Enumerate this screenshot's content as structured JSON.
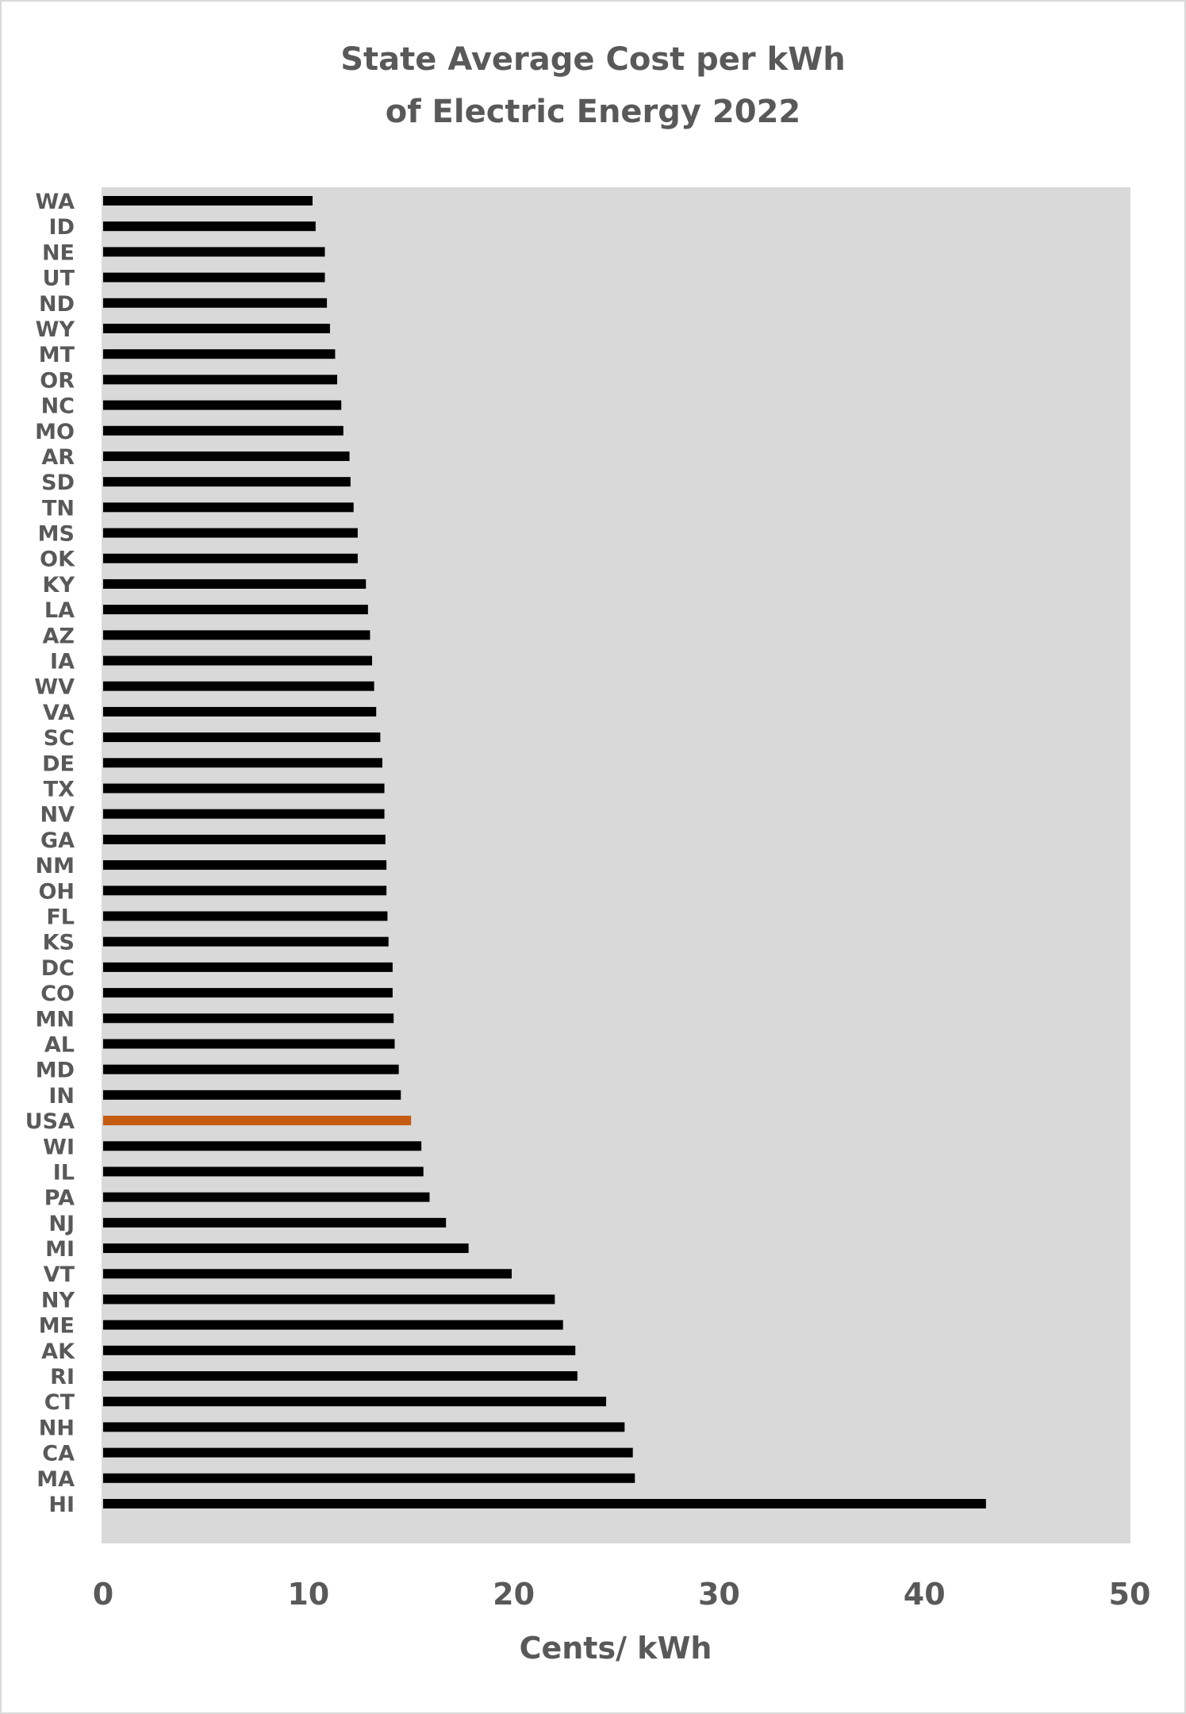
{
  "chart_data": {
    "type": "bar",
    "orientation": "horizontal",
    "title_lines": [
      "State Average Cost per kWh",
      "of Electric Energy 2022"
    ],
    "xlabel": "Cents/ kWh",
    "ylabel": "",
    "xlim": [
      0,
      50
    ],
    "xticks": [
      0,
      10,
      20,
      30,
      40,
      50
    ],
    "grid": false,
    "legend": "none",
    "plot_background": "#d9d9d9",
    "bar_color": "#000000",
    "highlight_color": "#c55a11",
    "highlight_category": "USA",
    "categories": [
      "WA",
      "ID",
      "NE",
      "UT",
      "ND",
      "WY",
      "MT",
      "OR",
      "NC",
      "MO",
      "AR",
      "SD",
      "TN",
      "MS",
      "OK",
      "KY",
      "LA",
      "AZ",
      "IA",
      "WV",
      "VA",
      "SC",
      "DE",
      "TX",
      "NV",
      "GA",
      "NM",
      "OH",
      "FL",
      "KS",
      "DC",
      "CO",
      "MN",
      "AL",
      "MD",
      "IN",
      "USA",
      "WI",
      "IL",
      "PA",
      "NJ",
      "MI",
      "VT",
      "NY",
      "ME",
      "AK",
      "RI",
      "CT",
      "NH",
      "CA",
      "MA",
      "HI"
    ],
    "values": [
      10.2,
      10.35,
      10.8,
      10.8,
      10.9,
      11.05,
      11.3,
      11.4,
      11.6,
      11.7,
      12.0,
      12.05,
      12.2,
      12.4,
      12.4,
      12.8,
      12.9,
      13.0,
      13.1,
      13.2,
      13.3,
      13.5,
      13.6,
      13.7,
      13.7,
      13.75,
      13.8,
      13.8,
      13.85,
      13.9,
      14.1,
      14.1,
      14.15,
      14.2,
      14.4,
      14.5,
      15.0,
      15.5,
      15.6,
      15.9,
      16.7,
      17.8,
      19.9,
      22.0,
      22.4,
      23.0,
      23.1,
      24.5,
      25.4,
      25.8,
      25.9,
      43.0
    ]
  }
}
